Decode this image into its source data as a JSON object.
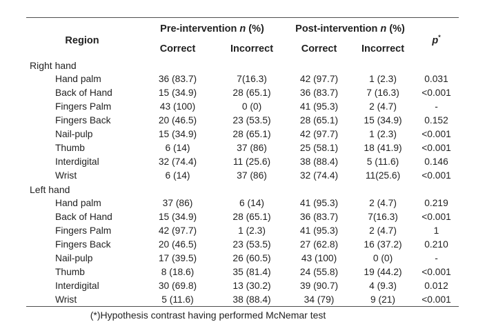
{
  "colors": {
    "text": "#1f1f1f",
    "rule": "#4d4d4d",
    "background": "#ffffff"
  },
  "table": {
    "header": {
      "region_label": "Region",
      "pre_label": "Pre-intervention",
      "pre_n": "n",
      "pre_suffix": "(%)",
      "post_label": "Post-intervention",
      "post_n": "n",
      "post_suffix": "(%)",
      "p_symbol": "p",
      "p_superscript": "*",
      "sub_pre_correct": "Correct",
      "sub_pre_incorrect": "Incorrect",
      "sub_post_correct": "Correct",
      "sub_post_incorrect": "Incorrect"
    },
    "sections": [
      {
        "label": "Right hand",
        "rows": [
          {
            "region": "Hand palm",
            "pre_correct": "36 (83.7)",
            "pre_incorrect": "7(16.3)",
            "post_correct": "42 (97.7)",
            "post_incorrect": "1 (2.3)",
            "p": "0.031"
          },
          {
            "region": "Back of Hand",
            "pre_correct": "15 (34.9)",
            "pre_incorrect": "28 (65.1)",
            "post_correct": "36 (83.7)",
            "post_incorrect": "7 (16.3)",
            "p": "<0.001"
          },
          {
            "region": "Fingers Palm",
            "pre_correct": "43 (100)",
            "pre_incorrect": "0 (0)",
            "post_correct": "41 (95.3)",
            "post_incorrect": "2 (4.7)",
            "p": "-"
          },
          {
            "region": "Fingers Back",
            "pre_correct": "20 (46.5)",
            "pre_incorrect": "23 (53.5)",
            "post_correct": "28 (65.1)",
            "post_incorrect": "15 (34.9)",
            "p": "0.152"
          },
          {
            "region": "Nail-pulp",
            "pre_correct": "15 (34.9)",
            "pre_incorrect": "28 (65.1)",
            "post_correct": "42 (97.7)",
            "post_incorrect": "1 (2.3)",
            "p": "<0.001"
          },
          {
            "region": "Thumb",
            "pre_correct": "6 (14)",
            "pre_incorrect": "37 (86)",
            "post_correct": "25 (58.1)",
            "post_incorrect": "18 (41.9)",
            "p": "<0.001"
          },
          {
            "region": "Interdigital",
            "pre_correct": "32 (74.4)",
            "pre_incorrect": "11 (25.6)",
            "post_correct": "38 (88.4)",
            "post_incorrect": "5 (11.6)",
            "p": "0.146"
          },
          {
            "region": "Wrist",
            "pre_correct": "6 (14)",
            "pre_incorrect": "37 (86)",
            "post_correct": "32 (74.4)",
            "post_incorrect": "11(25.6)",
            "p": "<0.001"
          }
        ]
      },
      {
        "label": "Left hand",
        "rows": [
          {
            "region": "Hand palm",
            "pre_correct": "37 (86)",
            "pre_incorrect": "6 (14)",
            "post_correct": "41 (95.3)",
            "post_incorrect": "2 (4.7)",
            "p": "0.219"
          },
          {
            "region": "Back of Hand",
            "pre_correct": "15 (34.9)",
            "pre_incorrect": "28 (65.1)",
            "post_correct": "36 (83.7)",
            "post_incorrect": "7(16.3)",
            "p": "<0.001"
          },
          {
            "region": "Fingers Palm",
            "pre_correct": "42 (97.7)",
            "pre_incorrect": "1 (2.3)",
            "post_correct": "41 (95.3)",
            "post_incorrect": "2 (4.7)",
            "p": "1"
          },
          {
            "region": "Fingers Back",
            "pre_correct": "20 (46.5)",
            "pre_incorrect": "23 (53.5)",
            "post_correct": "27 (62.8)",
            "post_incorrect": "16 (37.2)",
            "p": "0.210"
          },
          {
            "region": "Nail-pulp",
            "pre_correct": "17 (39.5)",
            "pre_incorrect": "26 (60.5)",
            "post_correct": "43 (100)",
            "post_incorrect": "0 (0)",
            "p": "-"
          },
          {
            "region": "Thumb",
            "pre_correct": "8 (18.6)",
            "pre_incorrect": "35 (81.4)",
            "post_correct": "24 (55.8)",
            "post_incorrect": "19 (44.2)",
            "p": "<0.001"
          },
          {
            "region": "Interdigital",
            "pre_correct": "30 (69.8)",
            "pre_incorrect": "13 (30.2)",
            "post_correct": "39 (90.7)",
            "post_incorrect": "4 (9.3)",
            "p": "0.012"
          },
          {
            "region": "Wrist",
            "pre_correct": "5 (11.6)",
            "pre_incorrect": "38 (88.4)",
            "post_correct": "34 (79)",
            "post_incorrect": "9 (21)",
            "p": "<0.001"
          }
        ]
      }
    ],
    "footnote": "(*)Hypothesis contrast having performed McNemar test"
  }
}
